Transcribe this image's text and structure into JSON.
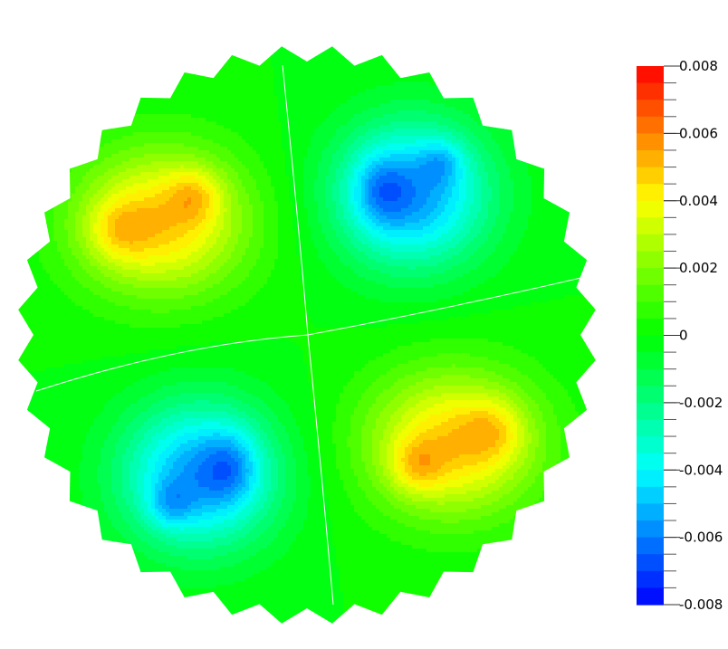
{
  "chart_data": {
    "type": "heatmap",
    "title": "",
    "xlabel": "",
    "ylabel": "",
    "domain_shape": "circular (stepped boundary)",
    "field_description_quadrants": [
      {
        "position": "upper-left",
        "sign": "positive",
        "peak_value": 0.0062
      },
      {
        "position": "upper-right",
        "sign": "negative",
        "peak_value": -0.0074
      },
      {
        "position": "lower-left",
        "sign": "negative",
        "peak_value": -0.0074
      },
      {
        "position": "lower-right",
        "sign": "positive",
        "peak_value": 0.0062
      }
    ],
    "colorbar": {
      "range": [
        -0.008,
        0.008
      ],
      "tick_labels": [
        "0.008",
        "0.006",
        "0.004",
        "0.002",
        "0",
        "-0.002",
        "-0.004",
        "-0.006",
        "-0.008"
      ],
      "tick_values": [
        0.008,
        0.006,
        0.004,
        0.002,
        0,
        -0.002,
        -0.004,
        -0.006,
        -0.008
      ],
      "levels": 32,
      "colors": [
        "#0000ff",
        "#00ffff",
        "#00ff00",
        "#ffff00",
        "#ff0000"
      ]
    },
    "contour_lines": true,
    "grid": false,
    "legend_placement": "right"
  }
}
